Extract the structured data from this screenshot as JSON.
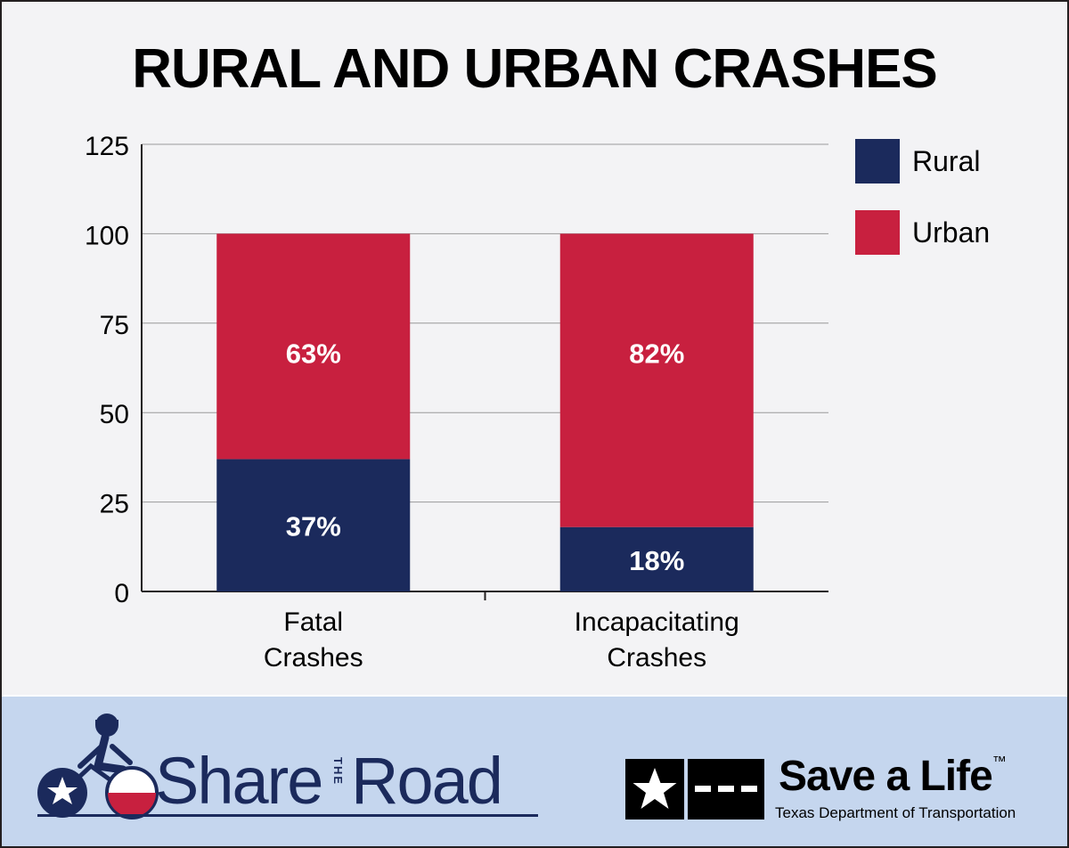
{
  "chart_data": {
    "type": "bar",
    "stacked": true,
    "title": "RURAL AND URBAN CRASHES",
    "categories": [
      [
        "Fatal",
        "Crashes"
      ],
      [
        "Incapacitating",
        "Crashes"
      ]
    ],
    "series": [
      {
        "name": "Rural",
        "values": [
          37,
          18
        ],
        "labels": [
          "37%",
          "18%"
        ],
        "color": "#1b2a5c"
      },
      {
        "name": "Urban",
        "values": [
          63,
          82
        ],
        "labels": [
          "63%",
          "82%"
        ],
        "color": "#c8203f"
      }
    ],
    "ylim": [
      0,
      125
    ],
    "yticks": [
      0,
      25,
      50,
      75,
      100,
      125
    ],
    "grid": true,
    "legend_position": "top-right"
  },
  "footer": {
    "share_logo": {
      "word1": "Share",
      "word2": "THE",
      "word3": "Road",
      "icon": "cyclist-icon"
    },
    "save_logo": {
      "slogan": "Save a Life",
      "trademark": "™",
      "agency": "Texas Department of Transportation",
      "icon": "star-flag-icon"
    }
  }
}
